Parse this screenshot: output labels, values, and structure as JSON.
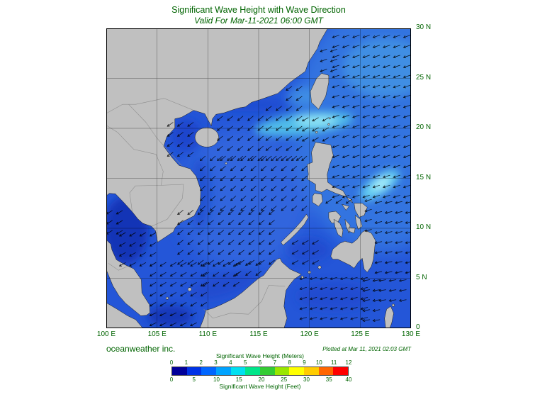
{
  "header": {
    "title": "Significant Wave Height with Wave Direction",
    "subtitle": "Valid For Mar-11-2021 06:00 GMT"
  },
  "axes": {
    "lat": [
      "30 N",
      "25 N",
      "20 N",
      "15 N",
      "10 N",
      "5 N",
      "0"
    ],
    "lon": [
      "100 E",
      "105 E",
      "110 E",
      "115 E",
      "120 E",
      "125 E",
      "130 E"
    ],
    "grid_step_deg": 5
  },
  "footer": {
    "credit": "oceanweather inc.",
    "plotted": "Plotted at Mar 11, 2021 02:03 GMT"
  },
  "colorbar": {
    "meters_label": "Significant Wave Height (Meters)",
    "feet_label": "Significant Wave Height (Feet)",
    "meters_ticks": [
      "0",
      "1",
      "2",
      "3",
      "4",
      "5",
      "6",
      "7",
      "8",
      "9",
      "10",
      "11",
      "12"
    ],
    "feet_ticks": [
      "0",
      "5",
      "10",
      "15",
      "20",
      "25",
      "30",
      "35",
      "40"
    ],
    "colors": [
      "#000099",
      "#0033e6",
      "#0066ff",
      "#00a3ff",
      "#00e0f0",
      "#00e68a",
      "#33cc33",
      "#99e600",
      "#ffff00",
      "#ffcc00",
      "#ff6600",
      "#ff0000"
    ]
  },
  "colors": {
    "text": "#006400",
    "land": "#c0c0c0",
    "ocean_base": "#2456d8"
  },
  "map_data": {
    "type": "heatmap",
    "field": "significant_wave_height_m",
    "region": {
      "lon": [
        100,
        130
      ],
      "lat": [
        0,
        30
      ]
    },
    "features": [
      {
        "area": "Luzon Strait / NE of Luzon",
        "wave_height_m": 3.5,
        "flow": "toward SW"
      },
      {
        "area": "Philippine Sea (east of Luzon/Taiwan)",
        "wave_height_m": 3.0,
        "flow": "toward W"
      },
      {
        "area": "Bright patch east of Samar",
        "wave_height_m": 3.5,
        "flow": "toward W"
      },
      {
        "area": "Central South China Sea",
        "wave_height_m": 2.5,
        "flow": "toward SW"
      },
      {
        "area": "Gulf of Thailand",
        "wave_height_m": 1.0,
        "flow": "toward SW"
      },
      {
        "area": "Gulf of Tonkin",
        "wave_height_m": 1.5,
        "flow": "toward SW"
      },
      {
        "area": "Sulu / Celebes Seas",
        "wave_height_m": 1.5,
        "flow": "toward W"
      }
    ]
  },
  "wave_arrows": {
    "step_deg": 1.0,
    "dir_convention": "toward_deg_clockwise_from_north",
    "regions": [
      {
        "name": "north-scs-west",
        "lon": [
          111.2,
          115.9
        ],
        "lat": [
          17.0,
          21.3
        ],
        "dir": 230
      },
      {
        "name": "north-scs-east",
        "lon": [
          116.0,
          119.5
        ],
        "lat": [
          17.0,
          22.8
        ],
        "dir": 232
      },
      {
        "name": "taiwan-strait",
        "lon": [
          118.0,
          119.6
        ],
        "lat": [
          23.0,
          24.2
        ],
        "dir": 235
      },
      {
        "name": "luzon-strait",
        "lon": [
          119.6,
          122.5
        ],
        "lat": [
          18.9,
          21.6
        ],
        "dir": 240
      },
      {
        "name": "gulf-of-tonkin",
        "lon": [
          106.3,
          108.5
        ],
        "lat": [
          17.4,
          20.4
        ],
        "dir": 235
      },
      {
        "name": "central-scs",
        "lon": [
          109.5,
          119.5
        ],
        "lat": [
          12.0,
          17.9
        ],
        "dir": 228
      },
      {
        "name": "south-scs",
        "lon": [
          107.3,
          116.5
        ],
        "lat": [
          6.6,
          11.6
        ],
        "dir": 232
      },
      {
        "name": "gulf-of-thailand-n",
        "lon": [
          100.3,
          102.2
        ],
        "lat": [
          9.6,
          12.4
        ],
        "dir": 240
      },
      {
        "name": "gulf-of-thailand-s",
        "lon": [
          101.6,
          104.6
        ],
        "lat": [
          6.4,
          9.4
        ],
        "dir": 240
      },
      {
        "name": "off-sarawak",
        "lon": [
          104.6,
          109.6
        ],
        "lat": [
          2.4,
          6.4
        ],
        "dir": 238
      },
      {
        "name": "off-brunei",
        "lon": [
          109.8,
          113.0
        ],
        "lat": [
          4.4,
          6.4
        ],
        "dir": 235
      },
      {
        "name": "off-sabah",
        "lon": [
          113.0,
          115.8
        ],
        "lat": [
          5.5,
          6.6
        ],
        "dir": 232
      },
      {
        "name": "karimata",
        "lon": [
          104.6,
          108.6
        ],
        "lat": [
          0.4,
          2.0
        ],
        "dir": 245
      },
      {
        "name": "sulu-sea",
        "lon": [
          118.6,
          121.4
        ],
        "lat": [
          6.6,
          9.0
        ],
        "dir": 240
      },
      {
        "name": "celebes-sea",
        "lon": [
          119.4,
          125.4
        ],
        "lat": [
          1.0,
          5.2
        ],
        "dir": 255
      },
      {
        "name": "molucca",
        "lon": [
          125.6,
          127.2
        ],
        "lat": [
          0.8,
          5.2
        ],
        "dir": 260
      },
      {
        "name": "pacific-sw-corner",
        "lon": [
          127.2,
          129.8
        ],
        "lat": [
          2.8,
          5.2
        ],
        "dir": 260
      },
      {
        "name": "philippine-sea",
        "lon": [
          122.6,
          129.8
        ],
        "lat": [
          13.2,
          29.6
        ],
        "dir": 252
      },
      {
        "name": "east-china-sea",
        "lon": [
          121.4,
          122.4
        ],
        "lat": [
          25.8,
          28.2
        ],
        "dir": 250
      },
      {
        "name": "pacific-east-mindanao",
        "lon": [
          126.8,
          129.8
        ],
        "lat": [
          5.6,
          13.0
        ],
        "dir": 258
      },
      {
        "name": "east-of-samar",
        "lon": [
          125.8,
          126.7
        ],
        "lat": [
          9.8,
          12.8
        ],
        "dir": 255
      },
      {
        "name": "sibuyan-sea",
        "lon": [
          121.9,
          123.9
        ],
        "lat": [
          12.7,
          13.3
        ],
        "dir": 235
      }
    ]
  }
}
